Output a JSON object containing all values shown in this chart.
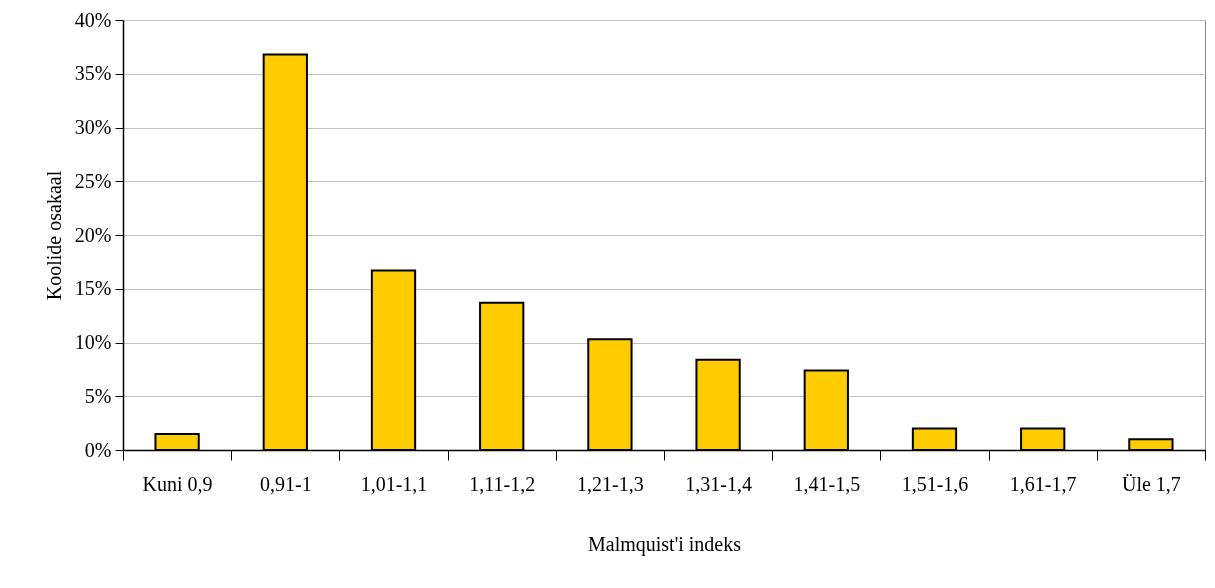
{
  "chart_data": {
    "type": "bar",
    "xlabel": "Malmquist'i indeks",
    "ylabel": "Koolide osakaal",
    "categories": [
      "Kuni 0,9",
      "0,91-1",
      "1,01-1,1",
      "1,11-1,2",
      "1,21-1,3",
      "1,31-1,4",
      "1,41-1,5",
      "1,51-1,6",
      "1,61-1,7",
      "Üle 1,7"
    ],
    "values": [
      1.5,
      36.8,
      16.7,
      13.7,
      10.3,
      8.4,
      7.4,
      2.0,
      2.0,
      1.0
    ],
    "color": "#ffcc00",
    "ylim": [
      0,
      40
    ],
    "yticks": [
      {
        "value": 0,
        "label": "0%"
      },
      {
        "value": 5,
        "label": "5%"
      },
      {
        "value": 10,
        "label": "10%"
      },
      {
        "value": 15,
        "label": "15%"
      },
      {
        "value": 20,
        "label": "20%"
      },
      {
        "value": 25,
        "label": "25%"
      },
      {
        "value": 30,
        "label": "30%"
      },
      {
        "value": 35,
        "label": "35%"
      },
      {
        "value": 40,
        "label": "40%"
      }
    ],
    "grid": "y"
  }
}
